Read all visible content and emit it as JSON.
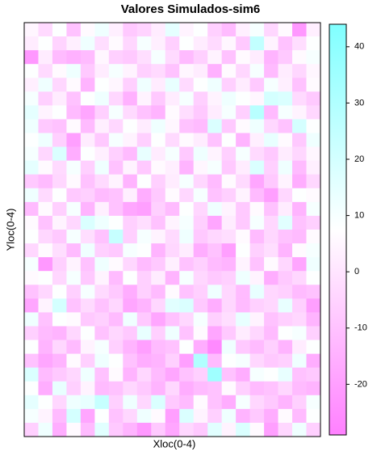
{
  "chart_data": {
    "type": "heatmap",
    "title": "Valores Simulados-sim6",
    "x_label": "Xloc(0-4)",
    "y_label": "Yloc(0-4)",
    "zlim": [
      -29,
      44
    ],
    "zticks": [
      -20,
      -10,
      0,
      10,
      20,
      30,
      40
    ],
    "colors": [
      "#ff80ff",
      "#ffffff",
      "#80ffff"
    ],
    "z": [
      [
        5,
        -3,
        8,
        -10,
        6,
        12,
        3,
        -8,
        -5,
        2,
        15,
        4,
        8,
        -6,
        -12,
        3,
        10,
        -4,
        6,
        -22,
        3
      ],
      [
        2,
        8,
        -5,
        3,
        12,
        -2,
        6,
        -4,
        10,
        3,
        -6,
        8,
        2,
        -3,
        5,
        -8,
        25,
        4,
        -10,
        -2,
        8
      ],
      [
        -22,
        2,
        -12,
        -15,
        -12,
        5,
        -6,
        -8,
        -2,
        10,
        -3,
        -12,
        -6,
        4,
        -10,
        6,
        2,
        -14,
        -8,
        6,
        10
      ],
      [
        8,
        -3,
        6,
        12,
        -8,
        2,
        10,
        4,
        -6,
        -3,
        -10,
        5,
        2,
        -15,
        6,
        -4,
        10,
        -12,
        2,
        -4,
        5
      ],
      [
        3,
        12,
        -4,
        6,
        -14,
        8,
        5,
        -6,
        12,
        2,
        14,
        -3,
        8,
        12,
        -6,
        2,
        -8,
        10,
        3,
        -10,
        6
      ],
      [
        10,
        -6,
        2,
        -10,
        8,
        12,
        -4,
        -15,
        4,
        -8,
        2,
        10,
        -6,
        4,
        12,
        8,
        5,
        20,
        18,
        -3,
        -8
      ],
      [
        15,
        4,
        8,
        -12,
        -18,
        -6,
        10,
        -3,
        -10,
        -14,
        6,
        -2,
        -8,
        2,
        10,
        -6,
        28,
        -12,
        10,
        4,
        -4
      ],
      [
        12,
        -8,
        -10,
        6,
        -12,
        3,
        -4,
        8,
        2,
        12,
        5,
        -10,
        -12,
        18,
        -8,
        6,
        12,
        -4,
        -10,
        20,
        8
      ],
      [
        8,
        12,
        -6,
        -20,
        2,
        -8,
        10,
        4,
        -6,
        8,
        -3,
        6,
        2,
        -10,
        8,
        -14,
        3,
        14,
        6,
        -8,
        12
      ],
      [
        10,
        -4,
        18,
        -16,
        8,
        3,
        -6,
        -12,
        14,
        2,
        10,
        -8,
        12,
        4,
        -6,
        10,
        -3,
        -8,
        2,
        -4,
        5
      ],
      [
        15,
        6,
        -3,
        10,
        -6,
        12,
        -10,
        4,
        -8,
        6,
        3,
        -14,
        5,
        10,
        -8,
        2,
        18,
        -6,
        12,
        -12,
        3
      ],
      [
        -8,
        -12,
        -4,
        6,
        -10,
        -3,
        4,
        -14,
        8,
        -6,
        2,
        10,
        -4,
        -12,
        6,
        -3,
        -18,
        -8,
        4,
        -16,
        -4
      ],
      [
        12,
        -3,
        8,
        -8,
        -6,
        -12,
        -10,
        3,
        -16,
        -8,
        6,
        -4,
        10,
        -10,
        -6,
        4,
        -12,
        -20,
        -4,
        8,
        6
      ],
      [
        -12,
        6,
        -6,
        10,
        -14,
        3,
        -10,
        -18,
        -20,
        -6,
        -12,
        8,
        -4,
        12,
        4,
        -8,
        6,
        -10,
        2,
        -14,
        10
      ],
      [
        6,
        -10,
        4,
        -4,
        18,
        12,
        8,
        -6,
        -2,
        -10,
        4,
        10,
        -6,
        -18,
        2,
        -8,
        10,
        -4,
        16,
        -10,
        -6
      ],
      [
        8,
        -4,
        -8,
        10,
        -2,
        -10,
        24,
        -6,
        10,
        4,
        -3,
        12,
        -8,
        -4,
        -2,
        6,
        -12,
        -4,
        -10,
        -12,
        6
      ],
      [
        -4,
        6,
        -2,
        -12,
        12,
        -6,
        -8,
        10,
        8,
        -14,
        -4,
        2,
        -16,
        -10,
        -20,
        8,
        -6,
        -2,
        -14,
        6,
        10
      ],
      [
        10,
        -22,
        -6,
        4,
        -10,
        12,
        6,
        -4,
        -12,
        -8,
        3,
        -10,
        -6,
        -12,
        -14,
        4,
        -10,
        6,
        -4,
        -18,
        12
      ],
      [
        6,
        8,
        -4,
        10,
        -8,
        4,
        -12,
        8,
        -6,
        2,
        -14,
        10,
        -4,
        -8,
        -6,
        12,
        4,
        -16,
        -8,
        -4,
        8
      ],
      [
        -10,
        -4,
        8,
        -6,
        10,
        -3,
        -8,
        -16,
        -6,
        -12,
        6,
        -10,
        -6,
        12,
        -4,
        -12,
        14,
        -4,
        -6,
        -12,
        -10
      ],
      [
        -18,
        4,
        20,
        -10,
        -3,
        -10,
        -4,
        -18,
        -14,
        -4,
        16,
        18,
        -8,
        -16,
        -4,
        -12,
        -6,
        -4,
        14,
        -6,
        -20
      ],
      [
        12,
        -10,
        8,
        6,
        -8,
        -6,
        -12,
        12,
        -8,
        -18,
        -10,
        -4,
        10,
        -6,
        -2,
        14,
        4,
        -10,
        -6,
        -4,
        -14
      ],
      [
        -6,
        -12,
        -14,
        -4,
        8,
        -10,
        -4,
        -8,
        14,
        -6,
        12,
        -10,
        6,
        -18,
        -8,
        2,
        -4,
        -12,
        8,
        10,
        -6
      ],
      [
        8,
        -14,
        -4,
        -12,
        4,
        10,
        -6,
        -14,
        -20,
        -12,
        -10,
        8,
        -16,
        -26,
        12,
        -8,
        -12,
        -6,
        -14,
        2,
        8
      ],
      [
        -10,
        -18,
        -14,
        6,
        -6,
        12,
        8,
        -10,
        -16,
        -14,
        -6,
        -20,
        30,
        -12,
        8,
        10,
        -4,
        -8,
        -6,
        12,
        -16
      ],
      [
        18,
        -12,
        -8,
        -4,
        12,
        -10,
        6,
        -14,
        -4,
        -12,
        -18,
        -10,
        -6,
        35,
        -10,
        -16,
        10,
        8,
        14,
        -10,
        -8
      ],
      [
        8,
        -16,
        14,
        -6,
        4,
        -12,
        -10,
        -4,
        -8,
        -14,
        -4,
        -16,
        -12,
        -10,
        6,
        -6,
        -12,
        -10,
        -4,
        -12,
        -14
      ],
      [
        15,
        8,
        -4,
        12,
        14,
        24,
        -6,
        12,
        -4,
        18,
        -8,
        -12,
        6,
        -10,
        -16,
        10,
        -4,
        -8,
        -14,
        -6,
        10
      ],
      [
        10,
        4,
        -12,
        20,
        -18,
        8,
        -10,
        -4,
        12,
        6,
        -20,
        18,
        4,
        -6,
        12,
        -14,
        -8,
        -16,
        6,
        -12,
        8
      ],
      [
        -6,
        12,
        -16,
        6,
        -12,
        16,
        -8,
        -14,
        -22,
        -8,
        -18,
        -4,
        -8,
        16,
        4,
        18,
        6,
        -20,
        -4,
        12,
        -6
      ]
    ]
  }
}
